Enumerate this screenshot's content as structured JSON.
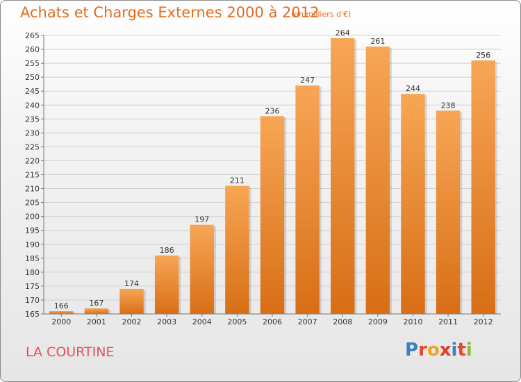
{
  "header": {
    "title": "Achats et Charges Externes 2000 à 2012",
    "subtitle": "(en milliers d'€)"
  },
  "footer": {
    "town": "LA COURTINE",
    "brand": "Proxiti"
  },
  "colors": {
    "title": "#e36a1f",
    "town": "#e4505c",
    "bar_top": "#f7a655",
    "bar_bottom": "#d86e16",
    "brand_letters": [
      "#3d7fc1",
      "#e8452c",
      "#f0a41f",
      "#e33b2a",
      "#3d7fc1",
      "#e8452c",
      "#8cb63c"
    ]
  },
  "chart_data": {
    "type": "bar",
    "title": "Achats et Charges Externes 2000 à 2012",
    "subtitle": "(en milliers d'€)",
    "categories": [
      "2000",
      "2001",
      "2002",
      "2003",
      "2004",
      "2005",
      "2006",
      "2007",
      "2008",
      "2009",
      "2010",
      "2011",
      "2012"
    ],
    "values": [
      166,
      167,
      174,
      186,
      197,
      211,
      236,
      247,
      264,
      261,
      244,
      238,
      256
    ],
    "ylim": [
      165,
      265
    ],
    "yticks": [
      165,
      170,
      175,
      180,
      185,
      190,
      195,
      200,
      205,
      210,
      215,
      220,
      225,
      230,
      235,
      240,
      245,
      250,
      255,
      260,
      265
    ],
    "grid": true,
    "data_labels": true
  }
}
